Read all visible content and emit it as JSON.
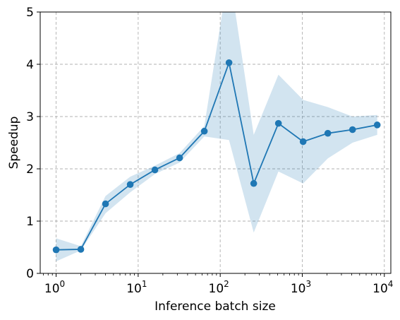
{
  "chart_data": {
    "type": "line",
    "title": "",
    "xlabel": "Inference batch size",
    "ylabel": "Speedup",
    "xscale": "log",
    "xlim": [
      0.64,
      12000
    ],
    "ylim": [
      0,
      5
    ],
    "grid": true,
    "x_ticks": [
      {
        "value": 1,
        "base": "10",
        "exp": "0"
      },
      {
        "value": 10,
        "base": "10",
        "exp": "1"
      },
      {
        "value": 100,
        "base": "10",
        "exp": "2"
      },
      {
        "value": 1000,
        "base": "10",
        "exp": "3"
      },
      {
        "value": 10000,
        "base": "10",
        "exp": "4"
      }
    ],
    "y_ticks": [
      0,
      1,
      2,
      3,
      4,
      5
    ],
    "series": [
      {
        "color": "#1f77b4",
        "band_color": "#1f77b4",
        "band_opacity": 0.2,
        "points": [
          {
            "x": 1,
            "y": 0.45,
            "lo": 0.23,
            "hi": 0.67
          },
          {
            "x": 2,
            "y": 0.46,
            "lo": 0.44,
            "hi": 0.52
          },
          {
            "x": 4,
            "y": 1.33,
            "lo": 1.15,
            "hi": 1.48
          },
          {
            "x": 8,
            "y": 1.7,
            "lo": 1.55,
            "hi": 1.85
          },
          {
            "x": 16,
            "y": 1.98,
            "lo": 1.9,
            "hi": 2.06
          },
          {
            "x": 32,
            "y": 2.21,
            "lo": 2.12,
            "hi": 2.3
          },
          {
            "x": 64,
            "y": 2.72,
            "lo": 2.62,
            "hi": 2.82
          },
          {
            "x": 128,
            "y": 4.03,
            "lo": 2.55,
            "hi": 5.8
          },
          {
            "x": 256,
            "y": 1.72,
            "lo": 0.78,
            "hi": 2.65
          },
          {
            "x": 512,
            "y": 2.87,
            "lo": 1.95,
            "hi": 3.8
          },
          {
            "x": 1024,
            "y": 2.52,
            "lo": 1.72,
            "hi": 3.32
          },
          {
            "x": 2048,
            "y": 2.68,
            "lo": 2.2,
            "hi": 3.18
          },
          {
            "x": 4096,
            "y": 2.75,
            "lo": 2.5,
            "hi": 3.0
          },
          {
            "x": 8192,
            "y": 2.84,
            "lo": 2.65,
            "hi": 3.03
          }
        ]
      }
    ]
  }
}
